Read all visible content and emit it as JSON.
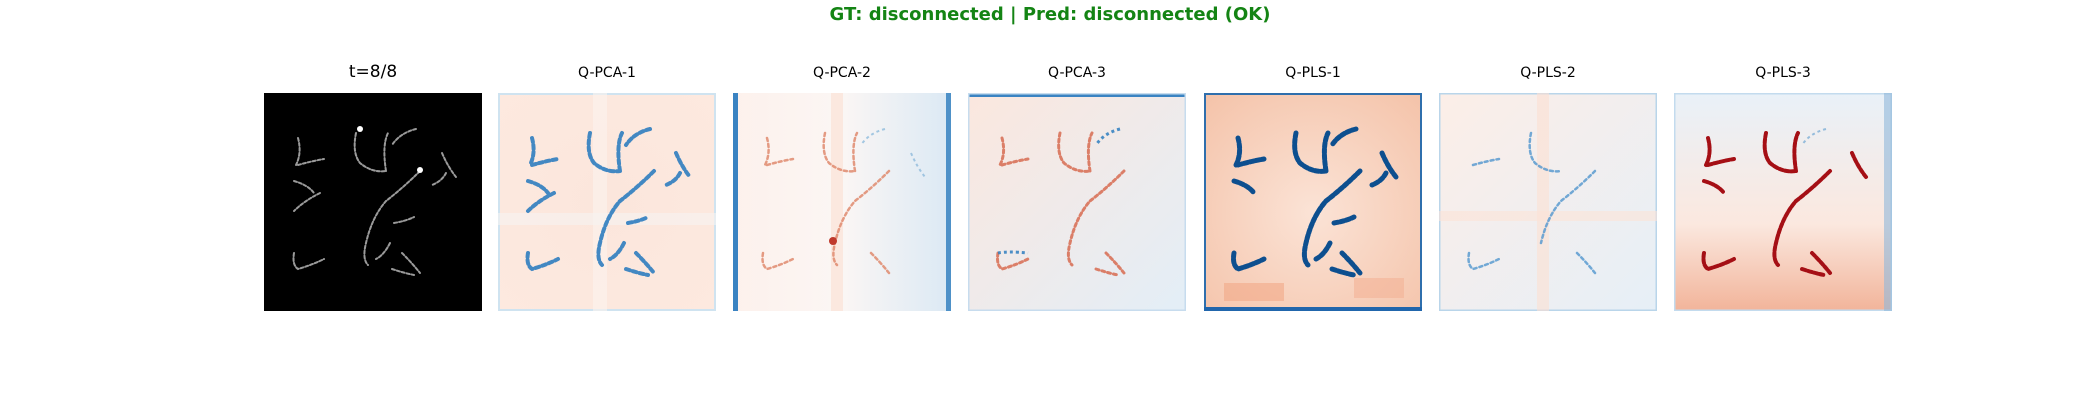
{
  "suptitle": "GT: disconnected | Pred: disconnected (OK)",
  "colors": {
    "suptitle": "#148414",
    "input_background": "#000000",
    "positive": "#b2182b",
    "negative": "#2166ac",
    "neutral": "#f7f7f7"
  },
  "panels": [
    {
      "title": "t=8/8",
      "kind": "input"
    },
    {
      "title": "Q-PCA-1",
      "kind": "saliency",
      "colormap": "RdBu"
    },
    {
      "title": "Q-PCA-2",
      "kind": "saliency",
      "colormap": "RdBu"
    },
    {
      "title": "Q-PCA-3",
      "kind": "saliency",
      "colormap": "RdBu"
    },
    {
      "title": "Q-PLS-1",
      "kind": "saliency",
      "colormap": "RdBu"
    },
    {
      "title": "Q-PLS-2",
      "kind": "saliency",
      "colormap": "RdBu"
    },
    {
      "title": "Q-PLS-3",
      "kind": "saliency",
      "colormap": "RdBu"
    }
  ]
}
